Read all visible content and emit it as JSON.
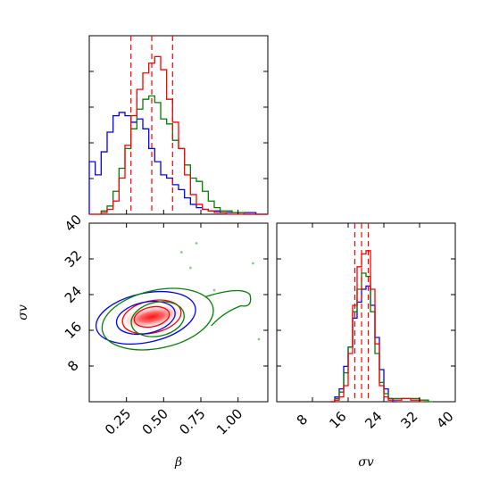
{
  "chart_data": [
    {
      "panel": "beta-histogram",
      "type": "histogram",
      "x_range": [
        0,
        1.2
      ],
      "series": [
        {
          "color": "#0000ff",
          "bins_x": [
            0.0,
            0.04,
            0.08,
            0.12,
            0.16,
            0.2,
            0.24,
            0.28,
            0.32,
            0.36,
            0.4,
            0.44,
            0.48,
            0.52,
            0.56,
            0.6,
            0.64,
            0.68,
            0.72,
            0.76,
            0.8,
            0.84,
            0.88,
            0.92,
            0.96,
            1.0,
            1.04,
            1.08,
            1.12,
            1.16
          ],
          "counts": [
            0.32,
            0.24,
            0.38,
            0.5,
            0.6,
            0.62,
            0.6,
            0.56,
            0.58,
            0.52,
            0.4,
            0.32,
            0.24,
            0.22,
            0.18,
            0.15,
            0.1,
            0.06,
            0.04,
            0.03,
            0.02,
            0.02,
            0.01,
            0.01,
            0.01,
            0.01,
            0.01,
            0.01,
            0.0,
            0.0
          ]
        },
        {
          "color": "#008000",
          "bins_x": [
            0.0,
            0.04,
            0.08,
            0.12,
            0.16,
            0.2,
            0.24,
            0.28,
            0.32,
            0.36,
            0.4,
            0.44,
            0.48,
            0.52,
            0.56,
            0.6,
            0.64,
            0.68,
            0.72,
            0.76,
            0.8,
            0.84,
            0.88,
            0.92,
            0.96,
            1.0,
            1.04,
            1.08,
            1.12,
            1.16
          ],
          "counts": [
            0.0,
            0.0,
            0.02,
            0.05,
            0.14,
            0.28,
            0.4,
            0.52,
            0.64,
            0.7,
            0.72,
            0.68,
            0.58,
            0.55,
            0.45,
            0.4,
            0.3,
            0.22,
            0.2,
            0.14,
            0.08,
            0.04,
            0.02,
            0.02,
            0.01,
            0.01,
            0.0,
            0.0,
            0.0,
            0.0
          ]
        },
        {
          "color": "#ff0000",
          "bins_x": [
            0.0,
            0.04,
            0.08,
            0.12,
            0.16,
            0.2,
            0.24,
            0.28,
            0.32,
            0.36,
            0.4,
            0.44,
            0.48,
            0.52,
            0.56,
            0.6,
            0.64,
            0.68,
            0.72,
            0.76,
            0.8,
            0.84,
            0.88,
            0.92,
            0.96,
            1.0,
            1.04,
            1.08,
            1.12,
            1.16
          ],
          "counts": [
            0.0,
            0.0,
            0.01,
            0.03,
            0.08,
            0.22,
            0.42,
            0.6,
            0.76,
            0.86,
            0.92,
            0.96,
            0.88,
            0.7,
            0.56,
            0.4,
            0.24,
            0.12,
            0.06,
            0.03,
            0.02,
            0.01,
            0.01,
            0.0,
            0.0,
            0.0,
            0.0,
            0.0,
            0.0,
            0.0
          ]
        }
      ],
      "quantile_lines_x": [
        0.28,
        0.42,
        0.56
      ]
    },
    {
      "panel": "beta-sigma-contour",
      "type": "contour",
      "x_range": [
        0,
        1.2
      ],
      "y_range": [
        0,
        40
      ],
      "xticks": [
        "0.25",
        "0.50",
        "0.75",
        "1.00"
      ],
      "yticks": [
        "8",
        "16",
        "24",
        "32",
        "40"
      ],
      "peak_x": 0.42,
      "peak_y": 19,
      "contours": [
        {
          "color": "#ff0000",
          "cx": 0.42,
          "cy": 19,
          "levels": [
            [
              0.12,
              2.2
            ],
            [
              0.2,
              3.6
            ]
          ]
        },
        {
          "color": "#0000ff",
          "cx": 0.38,
          "cy": 18.8,
          "levels": [
            [
              0.2,
              3.5
            ],
            [
              0.34,
              5.5
            ]
          ]
        },
        {
          "color": "#008000",
          "cx": 0.46,
          "cy": 18.5,
          "levels": [
            [
              0.18,
              3.8
            ],
            [
              0.38,
              6.5
            ]
          ]
        }
      ],
      "outlier_points": [
        {
          "x": 0.72,
          "y": 35.5
        },
        {
          "x": 0.62,
          "y": 33.5
        },
        {
          "x": 0.68,
          "y": 30
        },
        {
          "x": 0.84,
          "y": 25
        },
        {
          "x": 1.1,
          "y": 31
        },
        {
          "x": 1.14,
          "y": 14
        }
      ],
      "ylabel": "σv",
      "xlabel": "β"
    },
    {
      "panel": "sigma-histogram",
      "type": "histogram",
      "x_range": [
        0,
        40
      ],
      "xticks": [
        "8",
        "16",
        "24",
        "32",
        "40"
      ],
      "series": [
        {
          "color": "#0000ff",
          "bins_x": [
            12,
            13,
            14,
            15,
            16,
            17,
            18,
            19,
            20,
            21,
            22,
            23,
            24,
            25,
            26
          ],
          "counts": [
            0.0,
            0.03,
            0.08,
            0.22,
            0.34,
            0.52,
            0.62,
            0.7,
            0.72,
            0.6,
            0.4,
            0.2,
            0.08,
            0.02,
            0.0
          ]
        },
        {
          "color": "#008000",
          "bins_x": [
            12,
            13,
            14,
            15,
            16,
            17,
            18,
            19,
            20,
            21,
            22,
            23,
            24,
            25,
            26,
            28,
            30,
            32,
            34
          ],
          "counts": [
            0.0,
            0.02,
            0.06,
            0.18,
            0.34,
            0.56,
            0.7,
            0.8,
            0.78,
            0.56,
            0.3,
            0.12,
            0.05,
            0.02,
            0.02,
            0.02,
            0.02,
            0.01,
            0.0
          ]
        },
        {
          "color": "#ff0000",
          "bins_x": [
            12,
            13,
            14,
            15,
            16,
            17,
            18,
            19,
            20,
            21,
            22,
            23,
            24,
            25,
            26,
            28,
            30,
            32
          ],
          "counts": [
            0.0,
            0.01,
            0.03,
            0.1,
            0.3,
            0.6,
            0.84,
            0.92,
            0.94,
            0.7,
            0.36,
            0.1,
            0.03,
            0.01,
            0.01,
            0.02,
            0.01,
            0.0
          ]
        }
      ],
      "quantile_lines_x": [
        17.5,
        19,
        20.5
      ],
      "xlabel": "σv"
    }
  ]
}
